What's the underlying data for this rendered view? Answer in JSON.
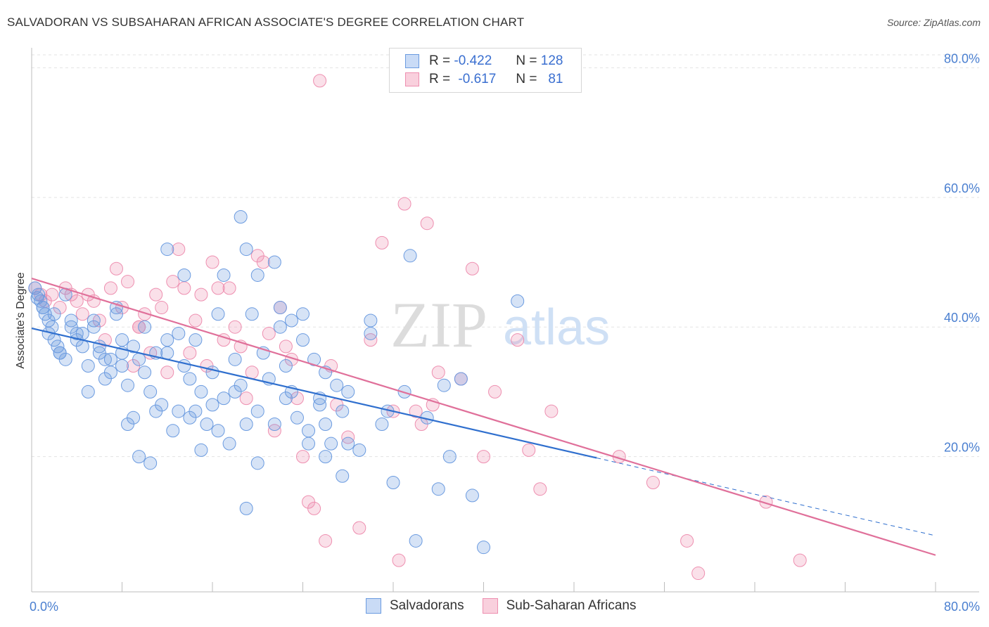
{
  "title": "SALVADORAN VS SUBSAHARAN AFRICAN ASSOCIATE'S DEGREE CORRELATION CHART",
  "source": "Source: ZipAtlas.com",
  "watermark": {
    "zip": "ZIP",
    "atlas": "atlas"
  },
  "legend": {
    "rows": [
      {
        "r_label": "R =",
        "r_value": "-0.422",
        "n_label": "N =",
        "n_value": "128"
      },
      {
        "r_label": "R =",
        "r_value": "-0.617",
        "n_label": "N =",
        "n_value": "81"
      }
    ]
  },
  "chart_data": {
    "type": "scatter",
    "title": "SALVADORAN VS SUBSAHARAN AFRICAN ASSOCIATE'S DEGREE CORRELATION CHART",
    "ylabel": "Associate's Degree",
    "xlabel": "",
    "xlim": [
      0,
      80
    ],
    "ylim": [
      0,
      82
    ],
    "x_tick_labels": [
      "0.0%",
      "80.0%"
    ],
    "y_ticks": [
      20,
      40,
      60,
      80
    ],
    "y_tick_labels": [
      "20.0%",
      "40.0%",
      "60.0%",
      "80.0%"
    ],
    "grid": true,
    "legend_position": "top-center",
    "colors": {
      "Salvadorans": "#6b9be0",
      "Sub-Saharan Africans": "#ee8fb0",
      "Salvadorans_line": "#2f6fce",
      "Sub-Saharan Africans_line": "#e0709a"
    },
    "series": [
      {
        "name": "Salvadorans",
        "r": -0.422,
        "n": 128,
        "trend": {
          "x": [
            0,
            50
          ],
          "y": [
            39.8,
            19.8
          ],
          "dashed_extension_to": [
            80,
            7.8
          ]
        },
        "points": [
          [
            0.3,
            46
          ],
          [
            0.5,
            44.5
          ],
          [
            0.8,
            44
          ],
          [
            1.0,
            43
          ],
          [
            1.2,
            42
          ],
          [
            1.5,
            41
          ],
          [
            1.8,
            40
          ],
          [
            2.0,
            38
          ],
          [
            2.3,
            37
          ],
          [
            2.5,
            36
          ],
          [
            3.0,
            45
          ],
          [
            3.5,
            41
          ],
          [
            4.0,
            39
          ],
          [
            4.5,
            37
          ],
          [
            5.0,
            34
          ],
          [
            5.5,
            40
          ],
          [
            6.0,
            36
          ],
          [
            6.5,
            32
          ],
          [
            7.0,
            35
          ],
          [
            7.5,
            43
          ],
          [
            8.0,
            36
          ],
          [
            8.5,
            31
          ],
          [
            9.0,
            37
          ],
          [
            9.5,
            35
          ],
          [
            10.0,
            33
          ],
          [
            10.5,
            30
          ],
          [
            11.0,
            36
          ],
          [
            11.5,
            28
          ],
          [
            12.0,
            38
          ],
          [
            12.5,
            24
          ],
          [
            13.0,
            39
          ],
          [
            13.5,
            34
          ],
          [
            14.0,
            26
          ],
          [
            14.5,
            27
          ],
          [
            15.0,
            30
          ],
          [
            15.5,
            25
          ],
          [
            16.0,
            28
          ],
          [
            16.5,
            24
          ],
          [
            17.0,
            29
          ],
          [
            17.5,
            22
          ],
          [
            18.0,
            35
          ],
          [
            18.5,
            31
          ],
          [
            19.0,
            25
          ],
          [
            19.5,
            42
          ],
          [
            20.0,
            27
          ],
          [
            20.5,
            36
          ],
          [
            21.0,
            32
          ],
          [
            21.5,
            25
          ],
          [
            22.0,
            40
          ],
          [
            22.5,
            34
          ],
          [
            23.0,
            30
          ],
          [
            23.5,
            26
          ],
          [
            24.0,
            38
          ],
          [
            24.5,
            24
          ],
          [
            25.0,
            35
          ],
          [
            25.5,
            28
          ],
          [
            26.0,
            33
          ],
          [
            26.5,
            22
          ],
          [
            27.0,
            31
          ],
          [
            27.5,
            27
          ],
          [
            1.5,
            39
          ],
          [
            2.5,
            36
          ],
          [
            3.5,
            40
          ],
          [
            4.5,
            39
          ],
          [
            5.5,
            41
          ],
          [
            6.5,
            35
          ],
          [
            7.5,
            42
          ],
          [
            8.5,
            25
          ],
          [
            9.5,
            20
          ],
          [
            10.5,
            19
          ],
          [
            12.0,
            52
          ],
          [
            13.5,
            48
          ],
          [
            15.0,
            21
          ],
          [
            16.5,
            42
          ],
          [
            18.5,
            57
          ],
          [
            19.0,
            52
          ],
          [
            20.0,
            48
          ],
          [
            21.5,
            50
          ],
          [
            23.0,
            41
          ],
          [
            24.5,
            22
          ],
          [
            26.0,
            25
          ],
          [
            27.5,
            17
          ],
          [
            29.0,
            21
          ],
          [
            30.0,
            39
          ],
          [
            31.0,
            25
          ],
          [
            32.0,
            16
          ],
          [
            33.0,
            30
          ],
          [
            34.0,
            7
          ],
          [
            35.0,
            26
          ],
          [
            36.0,
            15
          ],
          [
            37.0,
            20
          ],
          [
            38.0,
            32
          ],
          [
            39.0,
            14
          ],
          [
            40.0,
            6
          ],
          [
            43.0,
            44
          ],
          [
            30.0,
            41
          ],
          [
            28.0,
            30
          ],
          [
            25.5,
            29
          ],
          [
            22.0,
            43
          ],
          [
            17.0,
            48
          ],
          [
            14.0,
            32
          ],
          [
            11.0,
            27
          ],
          [
            9.0,
            26
          ],
          [
            7.0,
            33
          ],
          [
            5.0,
            30
          ],
          [
            3.0,
            35
          ],
          [
            1.0,
            43
          ],
          [
            0.6,
            45
          ],
          [
            2.0,
            42
          ],
          [
            4.0,
            38
          ],
          [
            6.0,
            37
          ],
          [
            8.0,
            34
          ],
          [
            10.0,
            40
          ],
          [
            12.0,
            36
          ],
          [
            14.5,
            38
          ],
          [
            16.0,
            33
          ],
          [
            18.0,
            30
          ],
          [
            20.0,
            19
          ],
          [
            22.5,
            29
          ],
          [
            24.0,
            42
          ],
          [
            26.0,
            20
          ],
          [
            28.0,
            22
          ],
          [
            31.5,
            27
          ],
          [
            33.5,
            51
          ],
          [
            36.5,
            31
          ],
          [
            19.0,
            12
          ],
          [
            13.0,
            27
          ],
          [
            8.0,
            38
          ]
        ]
      },
      {
        "name": "Sub-Saharan Africans",
        "r": -0.617,
        "n": 81,
        "trend": {
          "x": [
            0,
            80
          ],
          "y": [
            47.5,
            4.8
          ]
        },
        "points": [
          [
            0.3,
            46
          ],
          [
            0.8,
            45
          ],
          [
            1.2,
            44
          ],
          [
            1.8,
            45
          ],
          [
            2.5,
            43
          ],
          [
            3.0,
            46
          ],
          [
            3.5,
            45
          ],
          [
            4.0,
            44
          ],
          [
            4.5,
            42
          ],
          [
            5.0,
            45
          ],
          [
            5.5,
            44
          ],
          [
            6.0,
            41
          ],
          [
            6.5,
            38
          ],
          [
            7.0,
            46
          ],
          [
            7.5,
            49
          ],
          [
            8.0,
            43
          ],
          [
            8.5,
            47
          ],
          [
            9.0,
            34
          ],
          [
            9.5,
            40
          ],
          [
            10.0,
            42
          ],
          [
            10.5,
            36
          ],
          [
            11.0,
            45
          ],
          [
            11.5,
            43
          ],
          [
            12.0,
            33
          ],
          [
            12.5,
            47
          ],
          [
            13.0,
            52
          ],
          [
            13.5,
            46
          ],
          [
            14.0,
            36
          ],
          [
            14.5,
            41
          ],
          [
            15.0,
            45
          ],
          [
            15.5,
            34
          ],
          [
            16.0,
            50
          ],
          [
            16.5,
            46
          ],
          [
            17.0,
            38
          ],
          [
            17.5,
            46
          ],
          [
            18.0,
            40
          ],
          [
            18.5,
            37
          ],
          [
            19.0,
            29
          ],
          [
            19.5,
            33
          ],
          [
            20.0,
            51
          ],
          [
            20.5,
            50
          ],
          [
            21.0,
            39
          ],
          [
            21.5,
            24
          ],
          [
            22.0,
            43
          ],
          [
            22.5,
            37
          ],
          [
            23.0,
            35
          ],
          [
            23.5,
            29
          ],
          [
            24.0,
            20
          ],
          [
            24.5,
            13
          ],
          [
            25.0,
            12
          ],
          [
            25.5,
            78
          ],
          [
            26.0,
            7
          ],
          [
            26.5,
            34
          ],
          [
            27.0,
            28
          ],
          [
            28.0,
            23
          ],
          [
            29.0,
            9
          ],
          [
            30.0,
            38
          ],
          [
            31.0,
            53
          ],
          [
            32.0,
            27
          ],
          [
            32.5,
            4
          ],
          [
            33.0,
            59
          ],
          [
            34.0,
            27
          ],
          [
            34.5,
            25
          ],
          [
            35.0,
            56
          ],
          [
            35.5,
            28
          ],
          [
            36.0,
            33
          ],
          [
            38.0,
            32
          ],
          [
            39.0,
            49
          ],
          [
            40.0,
            20
          ],
          [
            41.0,
            30
          ],
          [
            43.0,
            38
          ],
          [
            44.0,
            21
          ],
          [
            45.0,
            15
          ],
          [
            46.0,
            27
          ],
          [
            52.0,
            20
          ],
          [
            55.0,
            16
          ],
          [
            58.0,
            7
          ],
          [
            59.0,
            2
          ],
          [
            65.0,
            13
          ],
          [
            68.0,
            4
          ],
          [
            9.5,
            40
          ]
        ]
      }
    ]
  },
  "bottom_legend": [
    {
      "label": "Salvadorans"
    },
    {
      "label": "Sub-Saharan Africans"
    }
  ]
}
